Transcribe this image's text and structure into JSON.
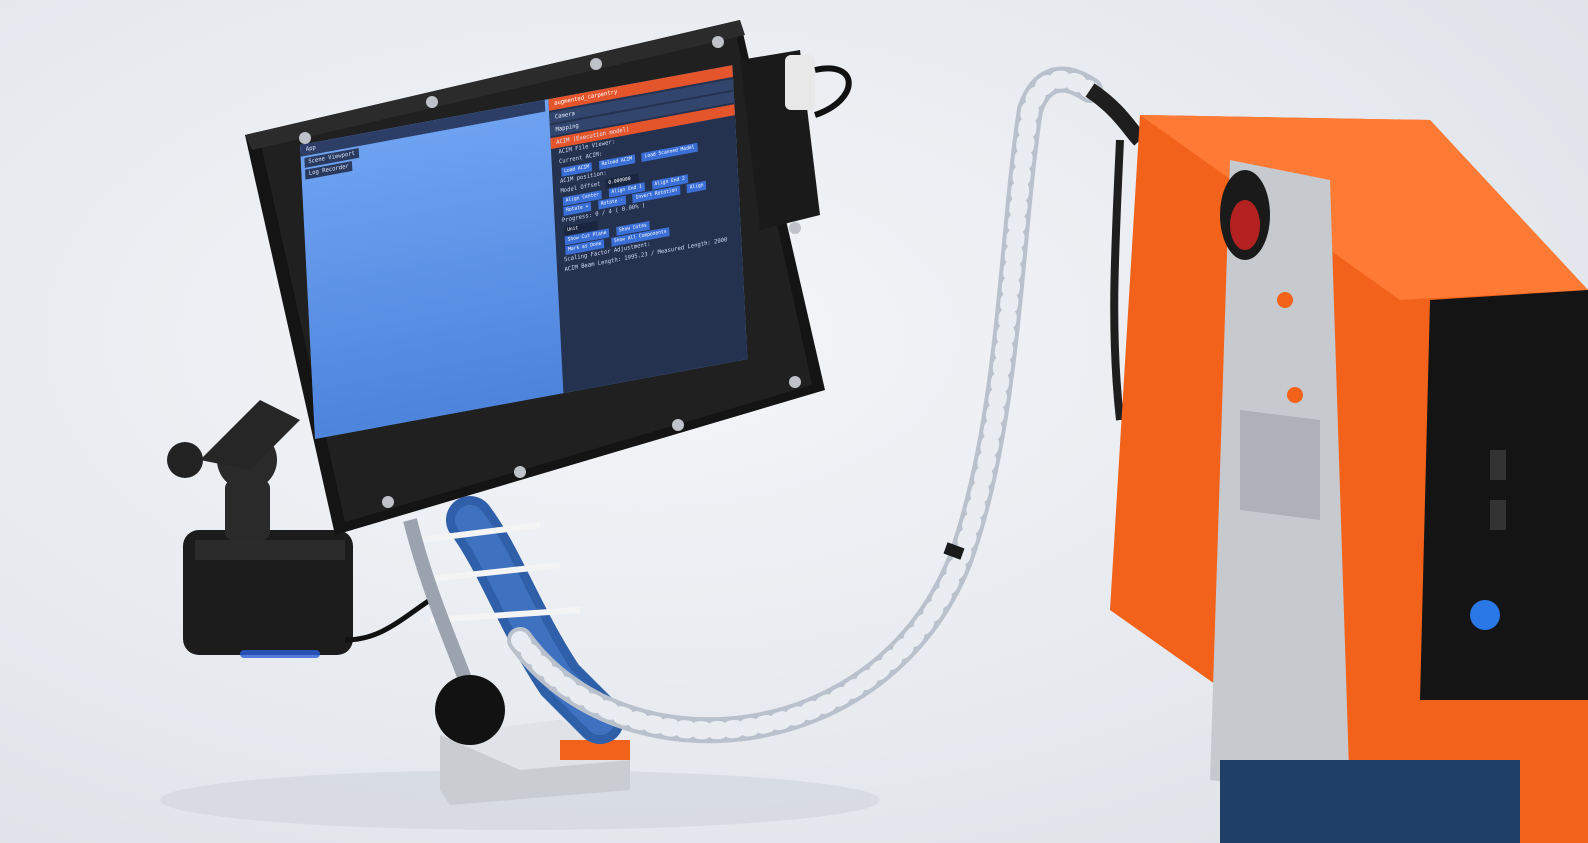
{
  "screen_ui": {
    "viewport": {
      "title": "App",
      "rows": [
        "Scene Viewport",
        "Log Recorder"
      ]
    },
    "panel": {
      "title": "augmented_carpentry",
      "sections": [
        "Camera",
        "Mapping",
        "ACIM (Execution model)"
      ],
      "lines": {
        "file_viewer": "ACIM File Viewer:",
        "current_acim": "Current ACIM:",
        "load_acim": "Load ACIM",
        "reload_acim": "Reload ACIM",
        "load_scanned_model": "Load Scanned Model",
        "acim_position": "ACIM position:",
        "model_offset": "Model Offset",
        "offset_value": "0.000000",
        "align_center": "Align Center",
        "align_end_1": "Align End 1",
        "align_end_2": "Align End 2",
        "rotate": "Rotate +",
        "rotate_minus": "Rotate -",
        "invert_rotation": "Invert Rotation",
        "align": "Align",
        "progress": "Progress: 0 / 4 ( 0.00% )",
        "unit": "Unit",
        "show_cut_plane": "Show Cut Plane",
        "show_cotas": "Show Cotas",
        "mark_as_done": "Mark as Done",
        "show_all_components": "Show All Components",
        "scale_factor": "Scaling Factor Adjustment:",
        "acim_length": "ACIM Beam Length: 1995.23 / Measured Length: 2000"
      }
    }
  },
  "colors": {
    "printed_case": "#f2621a",
    "screen_blue": "#5b8fe0",
    "panel_accent": "#e5552c",
    "hose_blue": "#2e5fa8"
  }
}
